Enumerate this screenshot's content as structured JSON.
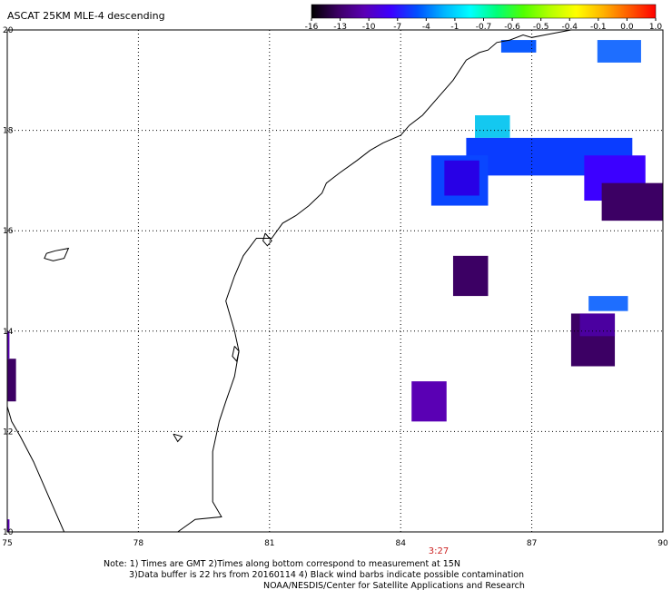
{
  "title": "ASCAT 25KM MLE-4 descending",
  "colorbar": {
    "labels": [
      "-16",
      "-13",
      "-10",
      "-7",
      "-4",
      "-1",
      "-0.7",
      "-0.6",
      "-0.5",
      "-0.4",
      "-0.1",
      "0.0",
      "1.0"
    ],
    "colors": [
      "#000000",
      "#3c0064",
      "#5a00b4",
      "#3c00ff",
      "#0050ff",
      "#00b4ff",
      "#00ffff",
      "#00ff78",
      "#50ff00",
      "#b4ff00",
      "#ffff00",
      "#ffb400",
      "#ff5a00",
      "#ff0000"
    ]
  },
  "map": {
    "lon_range": [
      75,
      90
    ],
    "lat_range": [
      10,
      20
    ],
    "lon_ticks": [
      "75",
      "78",
      "81",
      "84",
      "87",
      "90"
    ],
    "lat_ticks": [
      "20",
      "18",
      "16",
      "14",
      "12",
      "10"
    ],
    "time_label": "3:27",
    "time_color": "#cc2222",
    "coast_color": "#000000",
    "grid": "dotted"
  },
  "data_cells": [
    {
      "lon": [
        86.3,
        87.1
      ],
      "lat": [
        19.55,
        19.8
      ],
      "color": "#0a5aff"
    },
    {
      "lon": [
        88.5,
        89.5
      ],
      "lat": [
        19.35,
        19.8
      ],
      "color": "#1e6eff"
    },
    {
      "lon": [
        85.7,
        86.5
      ],
      "lat": [
        17.85,
        18.3
      ],
      "color": "#14c8f0"
    },
    {
      "lon": [
        85.5,
        89.3
      ],
      "lat": [
        17.1,
        17.85
      ],
      "color": "#0a3cff"
    },
    {
      "lon": [
        84.7,
        86.0
      ],
      "lat": [
        16.5,
        17.5
      ],
      "color": "#0a46ff"
    },
    {
      "lon": [
        85.0,
        85.8
      ],
      "lat": [
        16.7,
        17.4
      ],
      "color": "#2800e6"
    },
    {
      "lon": [
        88.2,
        89.6
      ],
      "lat": [
        16.6,
        17.5
      ],
      "color": "#3c00ff"
    },
    {
      "lon": [
        88.6,
        90.0
      ],
      "lat": [
        16.2,
        16.95
      ],
      "color": "#3c0064"
    },
    {
      "lon": [
        85.2,
        86.0
      ],
      "lat": [
        14.7,
        15.5
      ],
      "color": "#3c0064"
    },
    {
      "lon": [
        88.3,
        89.2
      ],
      "lat": [
        14.4,
        14.7
      ],
      "color": "#1e6eff"
    },
    {
      "lon": [
        87.9,
        88.9
      ],
      "lat": [
        13.3,
        14.35
      ],
      "color": "#3c0064"
    },
    {
      "lon": [
        88.1,
        88.9
      ],
      "lat": [
        13.9,
        14.35
      ],
      "color": "#4b00a0"
    },
    {
      "lon": [
        84.25,
        85.05
      ],
      "lat": [
        12.2,
        13.0
      ],
      "color": "#5a00b4"
    },
    {
      "lon": [
        75.0,
        75.2
      ],
      "lat": [
        12.6,
        13.45
      ],
      "color": "#3c0064"
    },
    {
      "lon": [
        75.0,
        75.05
      ],
      "lat": [
        13.45,
        14.0
      ],
      "color": "#5a00b4"
    },
    {
      "lon": [
        75.0,
        75.05
      ],
      "lat": [
        10.0,
        10.25
      ],
      "color": "#5a00b4"
    }
  ],
  "coastline": [
    [
      87.9,
      20.0
    ],
    [
      87.6,
      19.95
    ],
    [
      87.3,
      19.9
    ],
    [
      87.0,
      19.85
    ],
    [
      86.8,
      19.9
    ],
    [
      86.5,
      19.8
    ],
    [
      86.2,
      19.75
    ],
    [
      86.0,
      19.6
    ],
    [
      85.8,
      19.55
    ],
    [
      85.5,
      19.4
    ],
    [
      85.2,
      19.0
    ],
    [
      84.9,
      18.7
    ],
    [
      84.5,
      18.3
    ],
    [
      84.2,
      18.1
    ],
    [
      84.0,
      17.9
    ],
    [
      83.6,
      17.75
    ],
    [
      83.3,
      17.6
    ],
    [
      83.0,
      17.4
    ],
    [
      82.6,
      17.15
    ],
    [
      82.3,
      16.95
    ],
    [
      82.2,
      16.75
    ],
    [
      81.9,
      16.5
    ],
    [
      81.6,
      16.3
    ],
    [
      81.3,
      16.15
    ],
    [
      81.05,
      15.85
    ],
    [
      80.7,
      15.85
    ],
    [
      80.4,
      15.5
    ],
    [
      80.2,
      15.1
    ],
    [
      80.0,
      14.6
    ],
    [
      80.2,
      14.0
    ],
    [
      80.3,
      13.6
    ],
    [
      80.2,
      13.1
    ],
    [
      80.0,
      12.6
    ],
    [
      79.85,
      12.2
    ],
    [
      79.7,
      11.6
    ],
    [
      79.7,
      11.0
    ],
    [
      79.7,
      10.6
    ],
    [
      79.9,
      10.3
    ],
    [
      79.3,
      10.25
    ],
    [
      78.9,
      10.0
    ]
  ],
  "west_coast": [
    [
      75.0,
      12.5
    ],
    [
      75.1,
      12.2
    ],
    [
      75.3,
      11.9
    ],
    [
      75.6,
      11.4
    ],
    [
      75.8,
      11.0
    ],
    [
      76.0,
      10.6
    ],
    [
      76.2,
      10.2
    ],
    [
      76.3,
      10.0
    ]
  ],
  "inland_lakes": [
    [
      [
        75.9,
        15.55
      ],
      [
        76.1,
        15.6
      ],
      [
        76.4,
        15.65
      ],
      [
        76.3,
        15.45
      ],
      [
        76.05,
        15.4
      ],
      [
        75.85,
        15.45
      ],
      [
        75.9,
        15.55
      ]
    ],
    [
      [
        80.2,
        13.7
      ],
      [
        80.3,
        13.6
      ],
      [
        80.25,
        13.4
      ],
      [
        80.15,
        13.5
      ],
      [
        80.2,
        13.7
      ]
    ],
    [
      [
        80.9,
        15.95
      ],
      [
        81.05,
        15.8
      ],
      [
        80.95,
        15.7
      ],
      [
        80.85,
        15.8
      ],
      [
        80.9,
        15.95
      ]
    ],
    [
      [
        78.8,
        11.95
      ],
      [
        79.0,
        11.9
      ],
      [
        78.9,
        11.8
      ],
      [
        78.8,
        11.95
      ]
    ]
  ],
  "note": {
    "line1": "Note: 1) Times are GMT 2)Times along bottom correspond to measurement at 15N",
    "line2": "3)Data buffer is 22 hrs from 20160114 4) Black wind barbs indicate possible contamination",
    "line3": "NOAA/NESDIS/Center for Satellite Applications and Research"
  }
}
